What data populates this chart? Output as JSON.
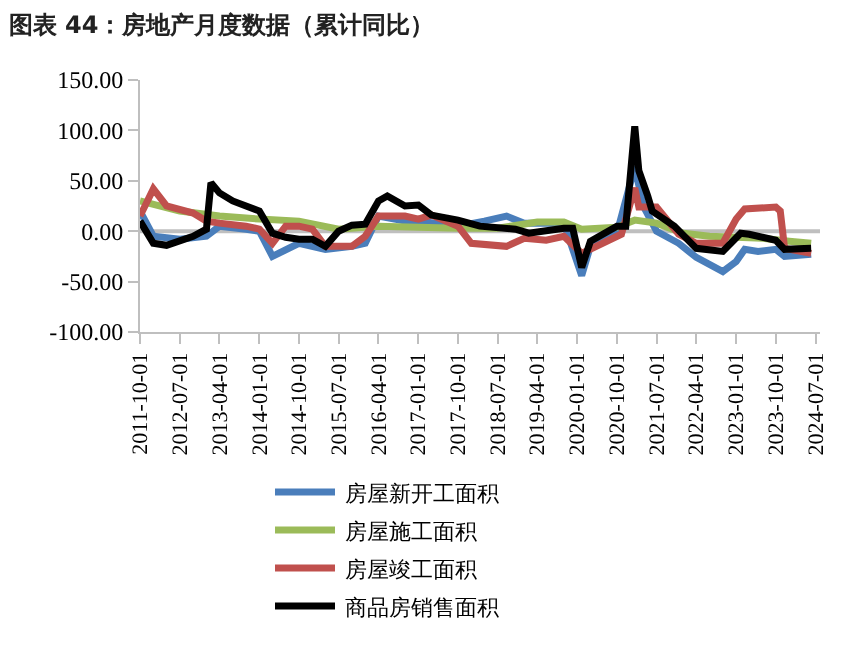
{
  "chart_data": {
    "type": "line",
    "title": "图表 44：房地产月度数据（累计同比）",
    "series": [
      {
        "name": "房屋新开工面积",
        "color": "#4a7ebb",
        "x": [
          "2011-10",
          "2012-01",
          "2012-07",
          "2013-01",
          "2013-04",
          "2013-10",
          "2014-01",
          "2014-04",
          "2014-10",
          "2015-04",
          "2015-10",
          "2016-01",
          "2016-04",
          "2016-10",
          "2017-01",
          "2017-10",
          "2018-04",
          "2018-09",
          "2019-01",
          "2019-06",
          "2019-10",
          "2020-02",
          "2020-04",
          "2020-10",
          "2021-02",
          "2021-04",
          "2021-07",
          "2021-12",
          "2022-04",
          "2022-10",
          "2023-01",
          "2023-03",
          "2023-06",
          "2023-10",
          "2023-12",
          "2024-06"
        ],
        "values": [
          20,
          -5,
          -8,
          -5,
          5,
          2,
          0,
          -25,
          -12,
          -18,
          -15,
          -12,
          15,
          10,
          10,
          5,
          10,
          15,
          8,
          8,
          8,
          -44,
          -15,
          -2,
          64,
          25,
          0,
          -12,
          -26,
          -40,
          -30,
          -18,
          -20,
          -18,
          -25,
          -23
        ]
      },
      {
        "name": "房屋施工面积",
        "color": "#9bbb59",
        "x": [
          "2011-10",
          "2012-07",
          "2013-04",
          "2014-01",
          "2014-10",
          "2015-07",
          "2016-04",
          "2017-01",
          "2017-10",
          "2018-07",
          "2019-04",
          "2019-10",
          "2020-02",
          "2020-10",
          "2021-02",
          "2021-07",
          "2022-01",
          "2022-07",
          "2023-01",
          "2023-07",
          "2024-01",
          "2024-06"
        ],
        "values": [
          30,
          20,
          15,
          12,
          10,
          2,
          5,
          4,
          3,
          3,
          9,
          9,
          2,
          4,
          11,
          8,
          -2,
          -5,
          -6,
          -7,
          -10,
          -12
        ]
      },
      {
        "name": "房屋竣工面积",
        "color": "#c0504d",
        "x": [
          "2011-10",
          "2012-01",
          "2012-04",
          "2012-10",
          "2013-01",
          "2013-04",
          "2013-10",
          "2014-01",
          "2014-04",
          "2014-07",
          "2014-10",
          "2015-01",
          "2015-04",
          "2015-10",
          "2016-01",
          "2016-04",
          "2016-10",
          "2017-01",
          "2017-04",
          "2017-10",
          "2018-01",
          "2018-09",
          "2019-01",
          "2019-06",
          "2019-10",
          "2020-02",
          "2020-11",
          "2021-02",
          "2021-03",
          "2021-07",
          "2021-12",
          "2022-04",
          "2022-10",
          "2023-01",
          "2023-03",
          "2023-10",
          "2023-11",
          "2023-12",
          "2024-06"
        ],
        "values": [
          15,
          42,
          25,
          18,
          10,
          8,
          5,
          2,
          -12,
          5,
          5,
          2,
          -15,
          -15,
          -5,
          15,
          15,
          12,
          16,
          5,
          -12,
          -15,
          -7,
          -9,
          -5,
          -22,
          -3,
          43,
          24,
          24,
          -3,
          -12,
          -12,
          12,
          22,
          24,
          20,
          -17,
          -22
        ]
      },
      {
        "name": "商品房销售面积",
        "color": "#000000",
        "x": [
          "2011-10",
          "2012-01",
          "2012-04",
          "2012-10",
          "2013-01",
          "2013-02",
          "2013-04",
          "2013-07",
          "2013-10",
          "2014-01",
          "2014-04",
          "2014-07",
          "2014-10",
          "2015-01",
          "2015-04",
          "2015-07",
          "2015-10",
          "2016-01",
          "2016-04",
          "2016-06",
          "2016-10",
          "2017-01",
          "2017-04",
          "2017-10",
          "2018-03",
          "2018-11",
          "2019-02",
          "2019-10",
          "2019-12",
          "2020-02",
          "2020-04",
          "2020-10",
          "2020-12",
          "2021-02",
          "2021-03",
          "2021-05",
          "2021-06",
          "2021-11",
          "2022-04",
          "2022-10",
          "2023-02",
          "2023-04",
          "2023-10",
          "2023-12",
          "2024-06"
        ],
        "values": [
          10,
          -12,
          -14,
          -5,
          2,
          48,
          38,
          30,
          25,
          20,
          -2,
          -6,
          -8,
          -8,
          -15,
          0,
          6,
          7,
          30,
          35,
          25,
          26,
          16,
          11,
          5,
          2,
          -2,
          3,
          3,
          -36,
          -10,
          5,
          5,
          104,
          60,
          35,
          20,
          5,
          -17,
          -20,
          -2,
          -3,
          -9,
          -18,
          -17
        ]
      }
    ],
    "xlim": [
      "2011-10-01",
      "2024-08-01"
    ],
    "xticks": [
      "2011-10-01",
      "2012-07-01",
      "2013-04-01",
      "2014-01-01",
      "2014-10-01",
      "2015-07-01",
      "2016-04-01",
      "2017-01-01",
      "2017-10-01",
      "2018-07-01",
      "2019-04-01",
      "2020-01-01",
      "2020-10-01",
      "2021-07-01",
      "2022-04-01",
      "2023-01-01",
      "2023-10-01",
      "2024-07-01"
    ],
    "ylim": [
      -100,
      150
    ],
    "yticks": [
      {
        "value": -100,
        "label": "-100.00"
      },
      {
        "value": -50,
        "label": "-50.00"
      },
      {
        "value": 0,
        "label": "0.00"
      },
      {
        "value": 50,
        "label": "50.00"
      },
      {
        "value": 100,
        "label": "100.00"
      },
      {
        "value": 150,
        "label": "150.00"
      }
    ],
    "ref_lines": [
      {
        "axis": "y",
        "value": 0,
        "color": "#bfbfbf"
      }
    ],
    "grid": false,
    "legend": "bottom",
    "marker": "none",
    "line_style": "solid"
  }
}
